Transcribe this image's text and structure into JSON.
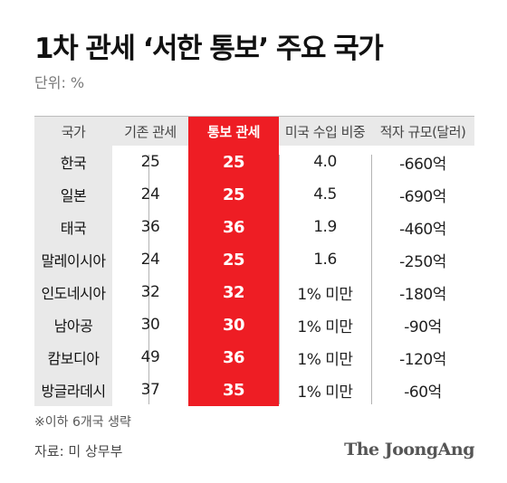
{
  "title": "1차 관세 ‘서한 통보’ 주요 국가",
  "unit": "단위: %",
  "columns": [
    "국가",
    "기존 관세",
    "통보 관세",
    "미국 수입 비중",
    "적자 규모(달러)"
  ],
  "rows": [
    {
      "country": "한국",
      "existing": "25",
      "notified": "25",
      "share": "4.0",
      "deficit": "-660억"
    },
    {
      "country": "일본",
      "existing": "24",
      "notified": "25",
      "share": "4.5",
      "deficit": "-690억"
    },
    {
      "country": "태국",
      "existing": "36",
      "notified": "36",
      "share": "1.9",
      "deficit": "-460억"
    },
    {
      "country": "말레이시아",
      "existing": "24",
      "notified": "25",
      "share": "1.6",
      "deficit": "-250억"
    },
    {
      "country": "인도네시아",
      "existing": "32",
      "notified": "32",
      "share": "1% 미만",
      "deficit": "-180억"
    },
    {
      "country": "남아공",
      "existing": "30",
      "notified": "30",
      "share": "1% 미만",
      "deficit": "-90억"
    },
    {
      "country": "캄보디아",
      "existing": "49",
      "notified": "36",
      "share": "1% 미만",
      "deficit": "-120억"
    },
    {
      "country": "방글라데시",
      "existing": "37",
      "notified": "35",
      "share": "1% 미만",
      "deficit": "-60억"
    }
  ],
  "note": "※이하 6개국 생략",
  "source": "자료: 미 상무부",
  "logo": "The JoongAng",
  "colors": {
    "highlight": "#ee1d24",
    "header_bg": "#e9e9e9"
  }
}
